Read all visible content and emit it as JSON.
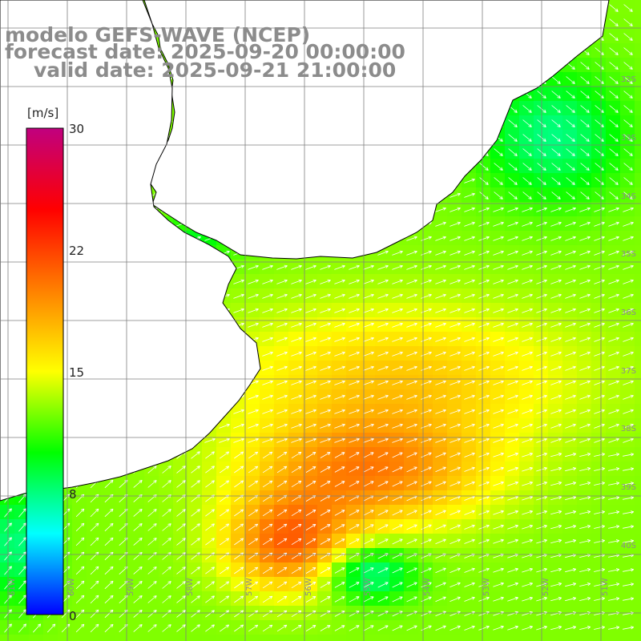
{
  "title": {
    "line1": "modelo GEFS-WAVE (NCEP)",
    "line2": "forecast date: 2025-09-20 00:00:00",
    "line3": "valid date: 2025-09-21 21:00:00"
  },
  "colorbar": {
    "unit": "[m/s]",
    "ticks": [
      "30",
      "22",
      "15",
      "8",
      "0"
    ],
    "tick_values": [
      30,
      22,
      15,
      8,
      0
    ],
    "stops": [
      "#0000ff",
      "#00ffff",
      "#00ff00",
      "#ffff00",
      "#ff8000",
      "#ff0000",
      "#c0007f"
    ],
    "min": 0,
    "max": 30
  },
  "axes": {
    "lat_labels": [
      "32S",
      "33S",
      "34S",
      "35S",
      "36S",
      "37S",
      "38S",
      "39S",
      "40S"
    ],
    "lon_labels": [
      "61W",
      "60W",
      "59W",
      "58W",
      "57W",
      "56W",
      "55W",
      "54W",
      "53W",
      "52W",
      "51W"
    ]
  },
  "colors": {
    "land": "#ffffff",
    "grid": "#7f7f7f",
    "coast": "#000000",
    "arrow": "#ffffff"
  }
}
